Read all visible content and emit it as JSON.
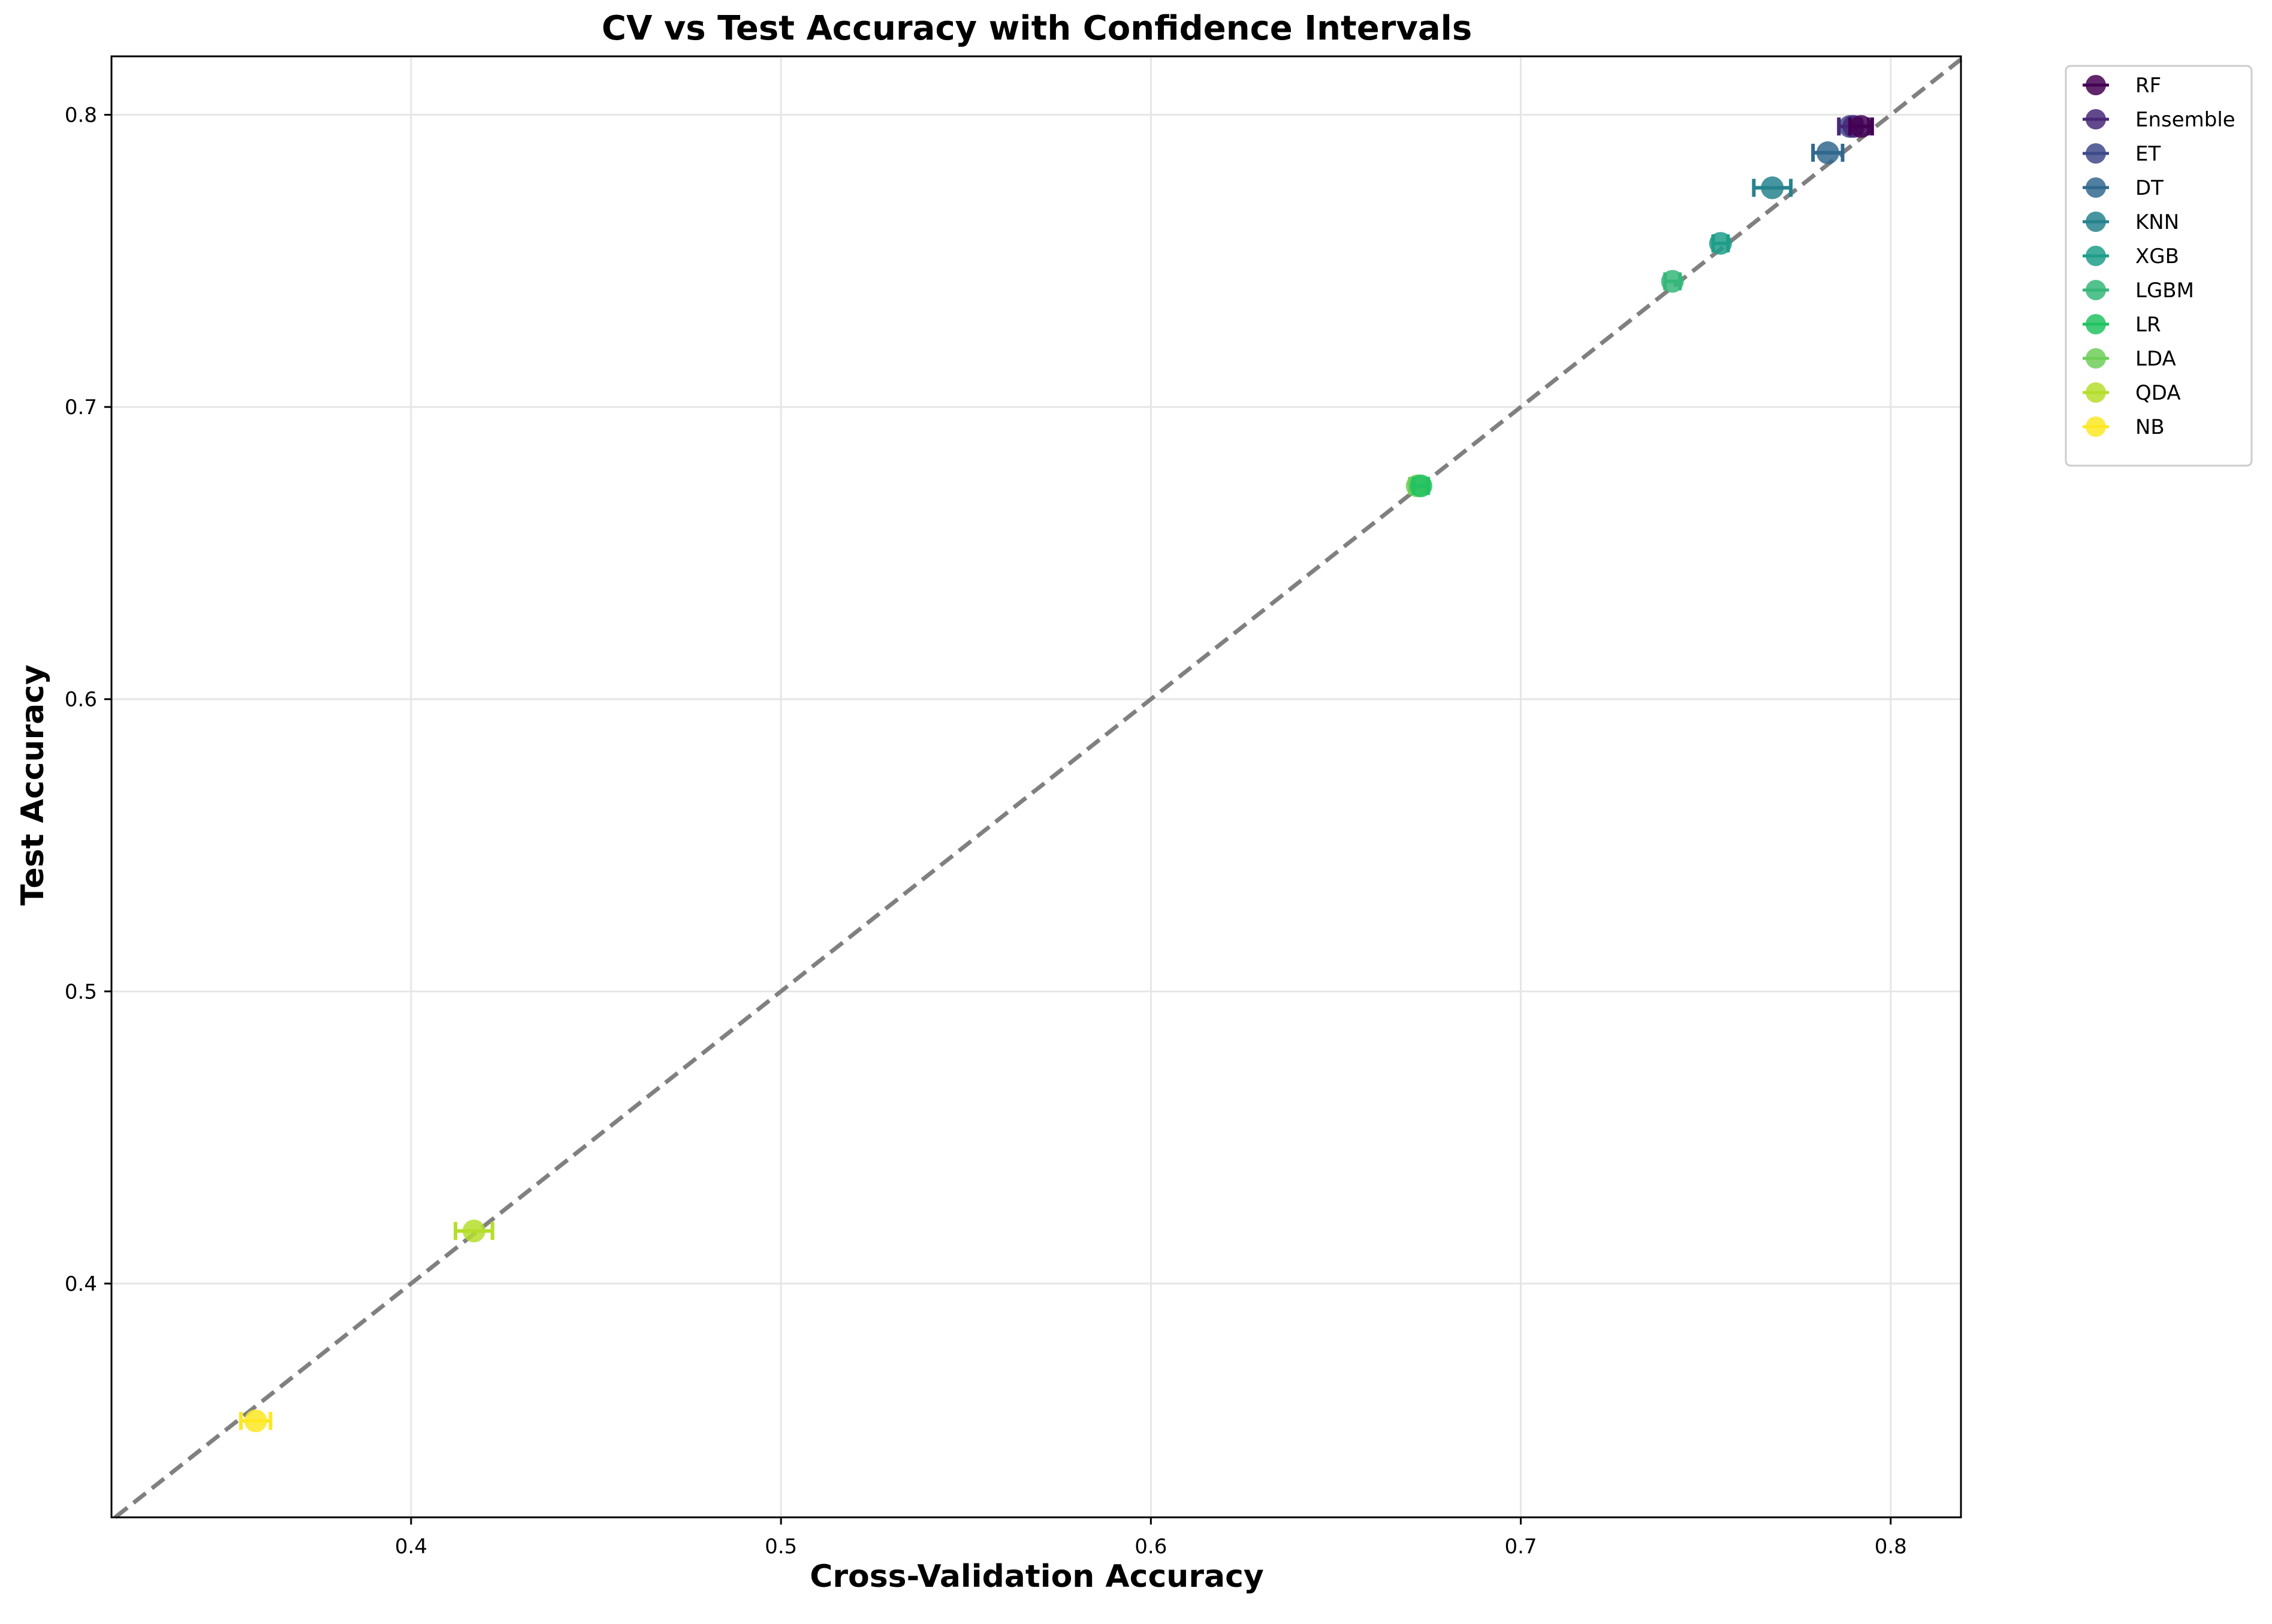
{
  "chart_data": {
    "type": "scatter",
    "title": "CV vs Test Accuracy with Confidence Intervals",
    "xlabel": "Cross-Validation Accuracy",
    "ylabel": "Test Accuracy",
    "xlim": [
      0.319,
      0.819
    ],
    "ylim": [
      0.32,
      0.82
    ],
    "xticks": [
      0.4,
      0.5,
      0.6,
      0.7,
      0.8
    ],
    "yticks": [
      0.4,
      0.5,
      0.6,
      0.7,
      0.8
    ],
    "x_tick_labels": [
      "0.4",
      "0.5",
      "0.6",
      "0.7",
      "0.8"
    ],
    "y_tick_labels": [
      "0.4",
      "0.5",
      "0.6",
      "0.7",
      "0.8"
    ],
    "grid": true,
    "legend_position": "outside top-right",
    "reference_line": {
      "type": "y=x",
      "style": "dashed",
      "color": "#808080"
    },
    "series": [
      {
        "name": "RF",
        "color": "#440154",
        "x": 0.792,
        "y": 0.796,
        "x_ci": [
          0.789,
          0.795
        ]
      },
      {
        "name": "Ensemble",
        "color": "#482878",
        "x": 0.79,
        "y": 0.796,
        "x_ci": [
          0.786,
          0.794
        ]
      },
      {
        "name": "ET",
        "color": "#3e4989",
        "x": 0.789,
        "y": 0.796,
        "x_ci": [
          0.786,
          0.792
        ]
      },
      {
        "name": "DT",
        "color": "#31688e",
        "x": 0.783,
        "y": 0.787,
        "x_ci": [
          0.779,
          0.787
        ]
      },
      {
        "name": "KNN",
        "color": "#26828e",
        "x": 0.768,
        "y": 0.775,
        "x_ci": [
          0.763,
          0.773
        ]
      },
      {
        "name": "XGB",
        "color": "#1f9e89",
        "x": 0.754,
        "y": 0.756,
        "x_ci": [
          0.752,
          0.756
        ]
      },
      {
        "name": "LGBM",
        "color": "#35b779",
        "x": 0.741,
        "y": 0.743,
        "x_ci": [
          0.739,
          0.743
        ]
      },
      {
        "name": "LR",
        "color": "#22c261",
        "x": 0.673,
        "y": 0.673,
        "x_ci": [
          0.671,
          0.675
        ]
      },
      {
        "name": "LDA",
        "color": "#6ece58",
        "x": 0.672,
        "y": 0.673,
        "x_ci": [
          0.67,
          0.674
        ]
      },
      {
        "name": "QDA",
        "color": "#b5de2b",
        "x": 0.417,
        "y": 0.418,
        "x_ci": [
          0.412,
          0.422
        ]
      },
      {
        "name": "NB",
        "color": "#fde725",
        "x": 0.358,
        "y": 0.353,
        "x_ci": [
          0.354,
          0.362
        ]
      }
    ]
  }
}
